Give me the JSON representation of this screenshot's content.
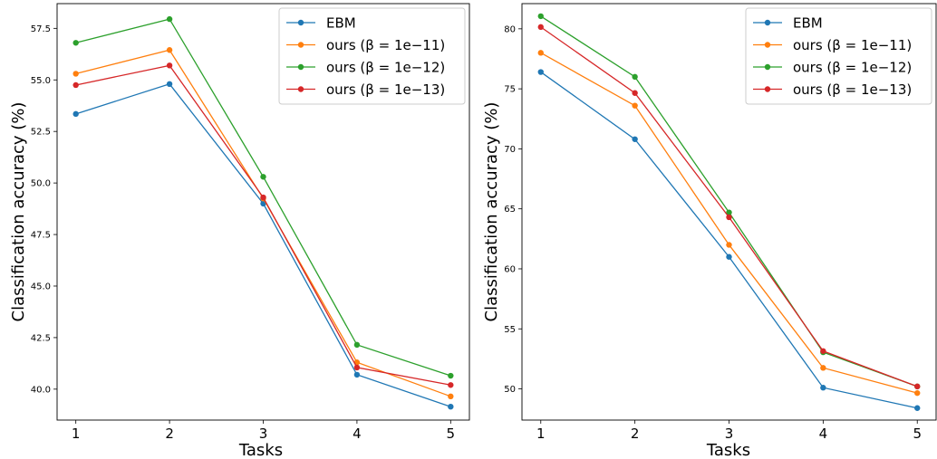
{
  "chart_data": [
    {
      "type": "line",
      "title": "",
      "xlabel": "Tasks",
      "ylabel": "Classification accuracy (%)",
      "x": [
        1,
        2,
        3,
        4,
        5
      ],
      "x_tick_labels": [
        "1",
        "2",
        "3",
        "4",
        "5"
      ],
      "y_ticks": [
        40.0,
        42.5,
        45.0,
        47.5,
        50.0,
        52.5,
        55.0,
        57.5
      ],
      "y_tick_labels": [
        "40.0",
        "42.5",
        "45.0",
        "47.5",
        "50.0",
        "52.5",
        "55.0",
        "57.5"
      ],
      "xlim": [
        0.8,
        5.2
      ],
      "ylim": [
        38.5,
        58.7
      ],
      "grid": false,
      "legend_position": "top-right",
      "series": [
        {
          "name": "EBM",
          "color": "#1f77b4",
          "values": [
            53.35,
            54.8,
            49.0,
            40.7,
            39.15
          ]
        },
        {
          "name": "ours (β = 1e−11)",
          "color": "#ff7f0e",
          "values": [
            55.3,
            56.45,
            49.25,
            41.3,
            39.65
          ]
        },
        {
          "name": "ours (β = 1e−12)",
          "color": "#2ca02c",
          "values": [
            56.8,
            57.95,
            50.3,
            42.15,
            40.65
          ]
        },
        {
          "name": "ours (β = 1e−13)",
          "color": "#d62728",
          "values": [
            54.75,
            55.7,
            49.3,
            41.05,
            40.2
          ]
        }
      ]
    },
    {
      "type": "line",
      "title": "",
      "xlabel": "Tasks",
      "ylabel": "Classification accuracy (%)",
      "x": [
        1,
        2,
        3,
        4,
        5
      ],
      "x_tick_labels": [
        "1",
        "2",
        "3",
        "4",
        "5"
      ],
      "y_ticks": [
        50,
        55,
        60,
        65,
        70,
        75,
        80
      ],
      "y_tick_labels": [
        "50",
        "55",
        "60",
        "65",
        "70",
        "75",
        "80"
      ],
      "xlim": [
        0.8,
        5.2
      ],
      "ylim": [
        47.4,
        82.1
      ],
      "grid": false,
      "legend_position": "top-right",
      "series": [
        {
          "name": "EBM",
          "color": "#1f77b4",
          "values": [
            76.4,
            70.8,
            61.0,
            50.1,
            48.4
          ]
        },
        {
          "name": "ours (β = 1e−11)",
          "color": "#ff7f0e",
          "values": [
            78.0,
            73.6,
            62.0,
            51.75,
            49.65
          ]
        },
        {
          "name": "ours (β = 1e−12)",
          "color": "#2ca02c",
          "values": [
            81.05,
            76.0,
            64.7,
            53.05,
            50.2
          ]
        },
        {
          "name": "ours (β = 1e−13)",
          "color": "#d62728",
          "values": [
            80.15,
            74.65,
            64.3,
            53.15,
            50.2
          ]
        }
      ]
    }
  ]
}
